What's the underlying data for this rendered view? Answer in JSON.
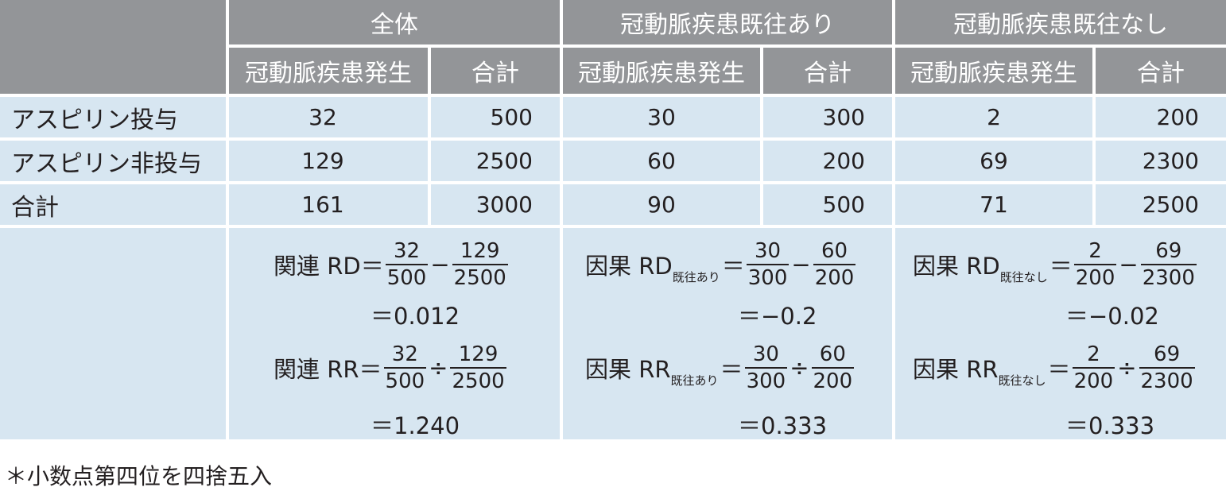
{
  "header": {
    "groups": [
      "全体",
      "冠動脈疾患既往あり",
      "冠動脈疾患既往なし"
    ],
    "subcolumns": [
      "冠動脈疾患発生",
      "合計"
    ]
  },
  "rows": [
    {
      "label": "アスピリン投与",
      "values": [
        "32",
        "500",
        "30",
        "300",
        "2",
        "200"
      ]
    },
    {
      "label": "アスピリン非投与",
      "values": [
        "129",
        "2500",
        "60",
        "200",
        "69",
        "2300"
      ]
    },
    {
      "label": "合計",
      "values": [
        "161",
        "3000",
        "90",
        "500",
        "71",
        "2500"
      ]
    }
  ],
  "formulas": {
    "overall": {
      "rd_prefix": "関連 RD＝",
      "rd_n1": "32",
      "rd_d1": "500",
      "rd_op": "−",
      "rd_n2": "129",
      "rd_d2": "2500",
      "rd_result": "＝0.012",
      "rr_prefix": "関連 RR＝",
      "rr_n1": "32",
      "rr_d1": "500",
      "rr_op": "÷",
      "rr_n2": "129",
      "rr_d2": "2500",
      "rr_result": "＝1.240"
    },
    "with_history": {
      "rd_prefix": "因果 RD",
      "rd_sub": "既往あり",
      "rd_eq": "＝",
      "rd_n1": "30",
      "rd_d1": "300",
      "rd_op": "−",
      "rd_n2": "60",
      "rd_d2": "200",
      "rd_result": "＝−0.2",
      "rr_prefix": "因果 RR",
      "rr_sub": "既往あり",
      "rr_eq": "＝",
      "rr_n1": "30",
      "rr_d1": "300",
      "rr_op": "÷",
      "rr_n2": "60",
      "rr_d2": "200",
      "rr_result": "＝0.333"
    },
    "without_history": {
      "rd_prefix": "因果 RD",
      "rd_sub": "既往なし",
      "rd_eq": "＝",
      "rd_n1": "2",
      "rd_d1": "200",
      "rd_op": "−",
      "rd_n2": "69",
      "rd_d2": "2300",
      "rd_result": "＝−0.02",
      "rr_prefix": "因果 RR",
      "rr_sub": "既往なし",
      "rr_eq": "＝",
      "rr_n1": "2",
      "rr_d1": "200",
      "rr_op": "÷",
      "rr_n2": "69",
      "rr_d2": "2300",
      "rr_result": "＝0.333"
    }
  },
  "footnote": "＊小数点第四位を四捨五入",
  "colors": {
    "header_bg": "#939598",
    "body_bg": "#d7e6f1",
    "text": "#231f20"
  }
}
